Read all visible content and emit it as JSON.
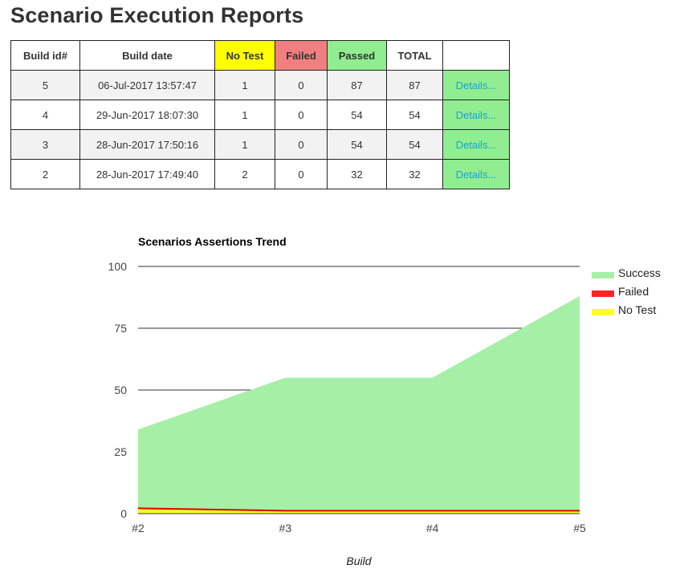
{
  "page": {
    "title": "Scenario Execution Reports"
  },
  "table": {
    "headers": {
      "build_id": "Build id#",
      "build_date": "Build date",
      "no_test": "No Test",
      "failed": "Failed",
      "passed": "Passed",
      "total": "TOTAL",
      "details": ""
    },
    "rows": [
      {
        "build_id": "5",
        "build_date": "06-Jul-2017 13:57:47",
        "no_test": "1",
        "failed": "0",
        "passed": "87",
        "total": "87",
        "details": "Details..."
      },
      {
        "build_id": "4",
        "build_date": "29-Jun-2017 18:07:30",
        "no_test": "1",
        "failed": "0",
        "passed": "54",
        "total": "54",
        "details": "Details..."
      },
      {
        "build_id": "3",
        "build_date": "28-Jun-2017 17:50:16",
        "no_test": "1",
        "failed": "0",
        "passed": "54",
        "total": "54",
        "details": "Details..."
      },
      {
        "build_id": "2",
        "build_date": "28-Jun-2017 17:49:40",
        "no_test": "2",
        "failed": "0",
        "passed": "32",
        "total": "32",
        "details": "Details..."
      }
    ]
  },
  "colors": {
    "no_test": "#ffff00",
    "failed": "#f08080",
    "passed": "#90ee90",
    "link": "#1a9fd8",
    "success_area": "#a6efa6",
    "failed_area": "#ff2222",
    "notest_area": "#ffff22"
  },
  "chart_data": {
    "type": "area",
    "stacked": true,
    "title": "Scenarios Assertions Trend",
    "xlabel": "Build",
    "ylabel": "",
    "categories": [
      "#2",
      "#3",
      "#4",
      "#5"
    ],
    "ylim": [
      0,
      100
    ],
    "yticks": [
      "0",
      "25",
      "50",
      "75",
      "100"
    ],
    "grid": true,
    "legend_position": "right",
    "series": [
      {
        "name": "Success",
        "values": [
          32,
          54,
          54,
          87
        ],
        "color": "#a6efa6"
      },
      {
        "name": "Failed",
        "values": [
          0,
          0,
          0,
          0
        ],
        "color": "#ff2222"
      },
      {
        "name": "No Test",
        "values": [
          2,
          1,
          1,
          1
        ],
        "color": "#ffff22"
      }
    ]
  }
}
